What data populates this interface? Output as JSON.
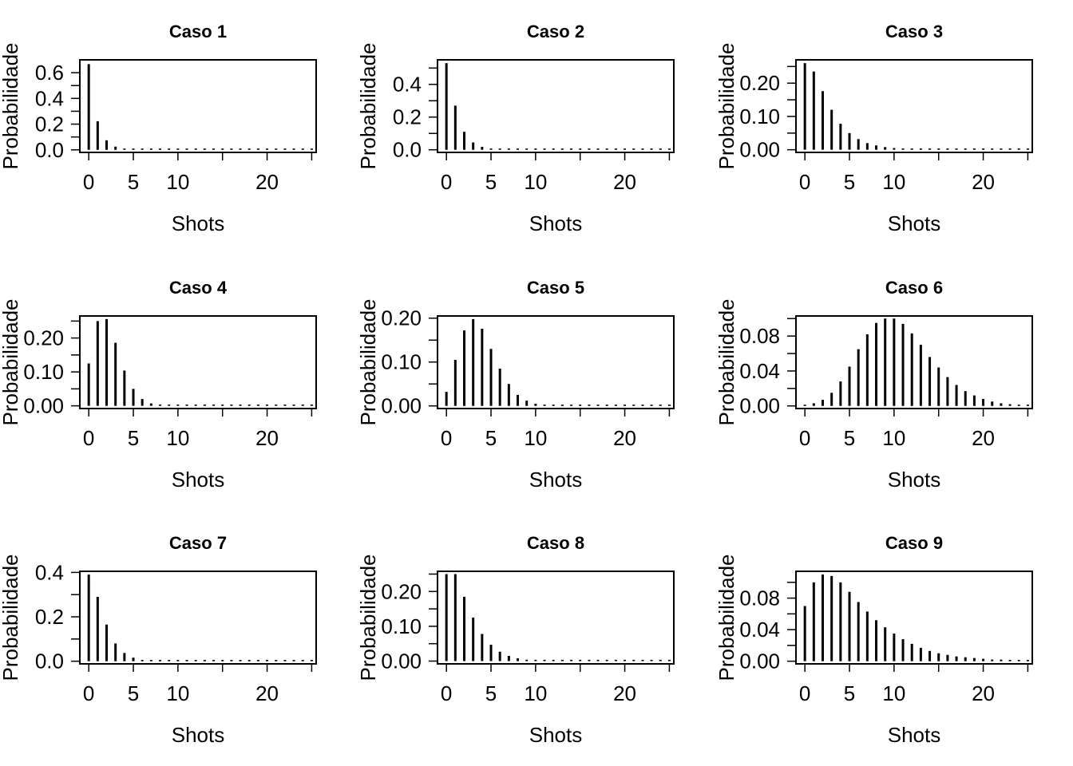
{
  "chart_data": [
    {
      "type": "bar",
      "title": "Caso 1",
      "xlabel": "Shots",
      "ylabel": "Probabilidade",
      "xticks": [
        "0",
        "5",
        "10",
        "20"
      ],
      "yticks": [
        "0.0",
        "0.2",
        "0.4",
        "0.6"
      ],
      "yticks_minor": 7,
      "xlim": [
        -1,
        25.5
      ],
      "ylim": [
        -0.02,
        0.7
      ],
      "x": [
        0,
        1,
        2,
        3,
        4,
        5,
        6,
        7,
        8,
        9,
        10,
        11,
        12,
        13,
        14,
        15,
        16,
        17,
        18,
        19,
        20,
        21,
        22,
        23,
        24,
        25
      ],
      "values": [
        0.667,
        0.222,
        0.074,
        0.025,
        0.008,
        0.003,
        0.001,
        0,
        0,
        0,
        0,
        0,
        0,
        0,
        0,
        0,
        0,
        0,
        0,
        0,
        0,
        0,
        0,
        0,
        0,
        0
      ]
    },
    {
      "type": "bar",
      "title": "Caso 2",
      "xlabel": "Shots",
      "ylabel": "Probabilidade",
      "xticks": [
        "0",
        "5",
        "10",
        "20"
      ],
      "yticks": [
        "0.0",
        "0.2",
        "0.4"
      ],
      "yticks_minor": 6,
      "xlim": [
        -1,
        25.5
      ],
      "ylim": [
        -0.016,
        0.55
      ],
      "x": [
        0,
        1,
        2,
        3,
        4,
        5,
        6,
        7,
        8,
        9,
        10,
        11,
        12,
        13,
        14,
        15,
        16,
        17,
        18,
        19,
        20,
        21,
        22,
        23,
        24,
        25
      ],
      "values": [
        0.53,
        0.27,
        0.11,
        0.045,
        0.018,
        0.007,
        0.003,
        0.001,
        0,
        0,
        0,
        0,
        0,
        0,
        0,
        0,
        0,
        0,
        0,
        0,
        0,
        0,
        0,
        0,
        0,
        0
      ]
    },
    {
      "type": "bar",
      "title": "Caso 3",
      "xlabel": "Shots",
      "ylabel": "Probabilidade",
      "xticks": [
        "0",
        "5",
        "10",
        "20"
      ],
      "yticks": [
        "0.00",
        "0.10",
        "0.20"
      ],
      "yticks_minor": 6,
      "xlim": [
        -1,
        25.5
      ],
      "ylim": [
        -0.008,
        0.27
      ],
      "x": [
        0,
        1,
        2,
        3,
        4,
        5,
        6,
        7,
        8,
        9,
        10,
        11,
        12,
        13,
        14,
        15,
        16,
        17,
        18,
        19,
        20,
        21,
        22,
        23,
        24,
        25
      ],
      "values": [
        0.26,
        0.235,
        0.176,
        0.12,
        0.078,
        0.05,
        0.032,
        0.02,
        0.013,
        0.008,
        0.005,
        0.003,
        0.002,
        0.001,
        0.001,
        0,
        0,
        0,
        0,
        0,
        0,
        0,
        0,
        0,
        0,
        0
      ]
    },
    {
      "type": "bar",
      "title": "Caso 4",
      "xlabel": "Shots",
      "ylabel": "Probabilidade",
      "xticks": [
        "0",
        "5",
        "10",
        "20"
      ],
      "yticks": [
        "0.00",
        "0.10",
        "0.20"
      ],
      "yticks_minor": 6,
      "xlim": [
        -1,
        25.5
      ],
      "ylim": [
        -0.008,
        0.265
      ],
      "x": [
        0,
        1,
        2,
        3,
        4,
        5,
        6,
        7,
        8,
        9,
        10,
        11,
        12,
        13,
        14,
        15,
        16,
        17,
        18,
        19,
        20,
        21,
        22,
        23,
        24,
        25
      ],
      "values": [
        0.125,
        0.25,
        0.256,
        0.186,
        0.104,
        0.05,
        0.02,
        0.007,
        0.002,
        0.001,
        0,
        0,
        0,
        0,
        0,
        0,
        0,
        0,
        0,
        0,
        0,
        0,
        0,
        0,
        0,
        0
      ]
    },
    {
      "type": "bar",
      "title": "Caso 5",
      "xlabel": "Shots",
      "ylabel": "Probabilidade",
      "xticks": [
        "0",
        "5",
        "10",
        "20"
      ],
      "yticks": [
        "0.00",
        "0.10",
        "0.20"
      ],
      "yticks_minor": 5,
      "xlim": [
        -1,
        25.5
      ],
      "ylim": [
        -0.006,
        0.205
      ],
      "x": [
        0,
        1,
        2,
        3,
        4,
        5,
        6,
        7,
        8,
        9,
        10,
        11,
        12,
        13,
        14,
        15,
        16,
        17,
        18,
        19,
        20,
        21,
        22,
        23,
        24,
        25
      ],
      "values": [
        0.032,
        0.105,
        0.172,
        0.198,
        0.176,
        0.13,
        0.085,
        0.05,
        0.025,
        0.012,
        0.005,
        0.002,
        0.001,
        0,
        0,
        0,
        0,
        0,
        0,
        0,
        0,
        0,
        0,
        0,
        0,
        0
      ]
    },
    {
      "type": "bar",
      "title": "Caso 6",
      "xlabel": "Shots",
      "ylabel": "Probabilidade",
      "xticks": [
        "0",
        "5",
        "10",
        "20"
      ],
      "yticks": [
        "0.00",
        "0.04",
        "0.08"
      ],
      "yticks_minor": 6,
      "xlim": [
        -1,
        25.5
      ],
      "ylim": [
        -0.003,
        0.103
      ],
      "x": [
        0,
        1,
        2,
        3,
        4,
        5,
        6,
        7,
        8,
        9,
        10,
        11,
        12,
        13,
        14,
        15,
        16,
        17,
        18,
        19,
        20,
        21,
        22,
        23,
        24,
        25
      ],
      "values": [
        0.0005,
        0.003,
        0.007,
        0.015,
        0.028,
        0.045,
        0.065,
        0.082,
        0.095,
        0.1,
        0.1,
        0.094,
        0.083,
        0.07,
        0.056,
        0.044,
        0.033,
        0.024,
        0.017,
        0.012,
        0.008,
        0.005,
        0.003,
        0.002,
        0.001,
        0.0005
      ]
    },
    {
      "type": "bar",
      "title": "Caso 7",
      "xlabel": "Shots",
      "ylabel": "Probabilidade",
      "xticks": [
        "0",
        "5",
        "10",
        "20"
      ],
      "yticks": [
        "0.0",
        "0.2",
        "0.4"
      ],
      "yticks_minor": 5,
      "xlim": [
        -1,
        25.5
      ],
      "ylim": [
        -0.012,
        0.405
      ],
      "x": [
        0,
        1,
        2,
        3,
        4,
        5,
        6,
        7,
        8,
        9,
        10,
        11,
        12,
        13,
        14,
        15,
        16,
        17,
        18,
        19,
        20,
        21,
        22,
        23,
        24,
        25
      ],
      "values": [
        0.39,
        0.29,
        0.165,
        0.08,
        0.037,
        0.016,
        0.006,
        0.002,
        0.001,
        0,
        0,
        0,
        0,
        0,
        0,
        0,
        0,
        0,
        0,
        0,
        0,
        0,
        0,
        0,
        0,
        0
      ]
    },
    {
      "type": "bar",
      "title": "Caso 8",
      "xlabel": "Shots",
      "ylabel": "Probabilidade",
      "xticks": [
        "0",
        "5",
        "10",
        "20"
      ],
      "yticks": [
        "0.00",
        "0.10",
        "0.20"
      ],
      "yticks_minor": 6,
      "xlim": [
        -1,
        25.5
      ],
      "ylim": [
        -0.008,
        0.258
      ],
      "x": [
        0,
        1,
        2,
        3,
        4,
        5,
        6,
        7,
        8,
        9,
        10,
        11,
        12,
        13,
        14,
        15,
        16,
        17,
        18,
        19,
        20,
        21,
        22,
        23,
        24,
        25
      ],
      "values": [
        0.25,
        0.25,
        0.185,
        0.125,
        0.078,
        0.047,
        0.027,
        0.015,
        0.008,
        0.004,
        0.002,
        0.001,
        0,
        0,
        0,
        0,
        0,
        0,
        0,
        0,
        0,
        0,
        0,
        0,
        0,
        0
      ]
    },
    {
      "type": "bar",
      "title": "Caso 9",
      "xlabel": "Shots",
      "ylabel": "Probabilidade",
      "xticks": [
        "0",
        "5",
        "10",
        "20"
      ],
      "yticks": [
        "0.00",
        "0.04",
        "0.08"
      ],
      "yticks_minor": 6,
      "xlim": [
        -1,
        25.5
      ],
      "ylim": [
        -0.0034,
        0.114
      ],
      "x": [
        0,
        1,
        2,
        3,
        4,
        5,
        6,
        7,
        8,
        9,
        10,
        11,
        12,
        13,
        14,
        15,
        16,
        17,
        18,
        19,
        20,
        21,
        22,
        23,
        24,
        25
      ],
      "values": [
        0.07,
        0.1,
        0.11,
        0.108,
        0.1,
        0.088,
        0.075,
        0.063,
        0.052,
        0.043,
        0.035,
        0.028,
        0.022,
        0.017,
        0.013,
        0.01,
        0.008,
        0.006,
        0.005,
        0.004,
        0.003,
        0.002,
        0.002,
        0.001,
        0.001,
        0.001
      ]
    }
  ]
}
